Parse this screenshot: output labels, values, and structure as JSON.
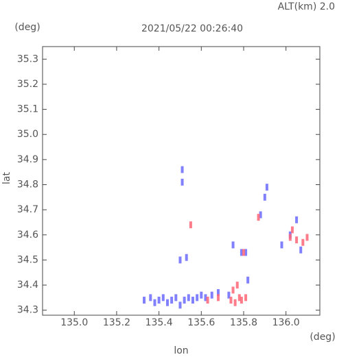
{
  "chart_data": {
    "type": "scatter",
    "title": "2021/05/22 00:26:40",
    "subtitle": "ALT(km) 2.0",
    "y_unit": "(deg)",
    "x_unit": "(deg)",
    "x_label": "lon",
    "y_label": "lat",
    "xlim": [
      134.85,
      136.16
    ],
    "ylim": [
      34.28,
      35.35
    ],
    "xticks": [
      {
        "value": 135,
        "label": "135.0"
      },
      135.2,
      135.4,
      135.6,
      135.8,
      {
        "value": 136,
        "label": "136.0"
      }
    ],
    "yticks": [
      34.3,
      34.4,
      34.5,
      34.6,
      34.7,
      34.8,
      34.9,
      {
        "value": 35,
        "label": "35.0"
      },
      35.1,
      35.2,
      35.3
    ],
    "series": [
      {
        "color": "#6b6bff",
        "x": [
          135.33,
          135.36,
          135.38,
          135.4,
          135.42,
          135.44,
          135.46,
          135.48,
          135.5,
          135.52,
          135.54,
          135.56,
          135.58,
          135.6,
          135.62,
          135.65,
          135.68,
          135.51,
          135.51,
          135.5,
          135.53,
          135.79,
          135.75,
          135.81,
          135.88,
          135.9,
          135.91,
          135.98,
          136.02,
          136.05,
          136.07,
          135.82,
          135.73
        ],
        "values": [
          34.34,
          34.35,
          34.33,
          34.34,
          34.35,
          34.33,
          34.34,
          34.35,
          34.32,
          34.34,
          34.35,
          34.34,
          34.35,
          34.36,
          34.35,
          34.36,
          34.37,
          34.81,
          34.86,
          34.5,
          34.51,
          34.53,
          34.56,
          34.53,
          34.68,
          34.75,
          34.79,
          34.56,
          34.6,
          34.66,
          34.54,
          34.42,
          34.36
        ]
      },
      {
        "color": "#ff6677",
        "x": [
          135.55,
          135.74,
          135.76,
          135.78,
          135.81,
          135.75,
          135.77,
          135.8,
          135.87,
          136.02,
          136.05,
          136.08,
          136.1,
          136.03,
          135.79,
          135.68,
          135.63
        ],
        "values": [
          34.64,
          34.34,
          34.33,
          34.35,
          34.35,
          34.38,
          34.4,
          34.53,
          34.67,
          34.59,
          34.58,
          34.57,
          34.59,
          34.62,
          34.34,
          34.35,
          34.34
        ]
      }
    ]
  }
}
